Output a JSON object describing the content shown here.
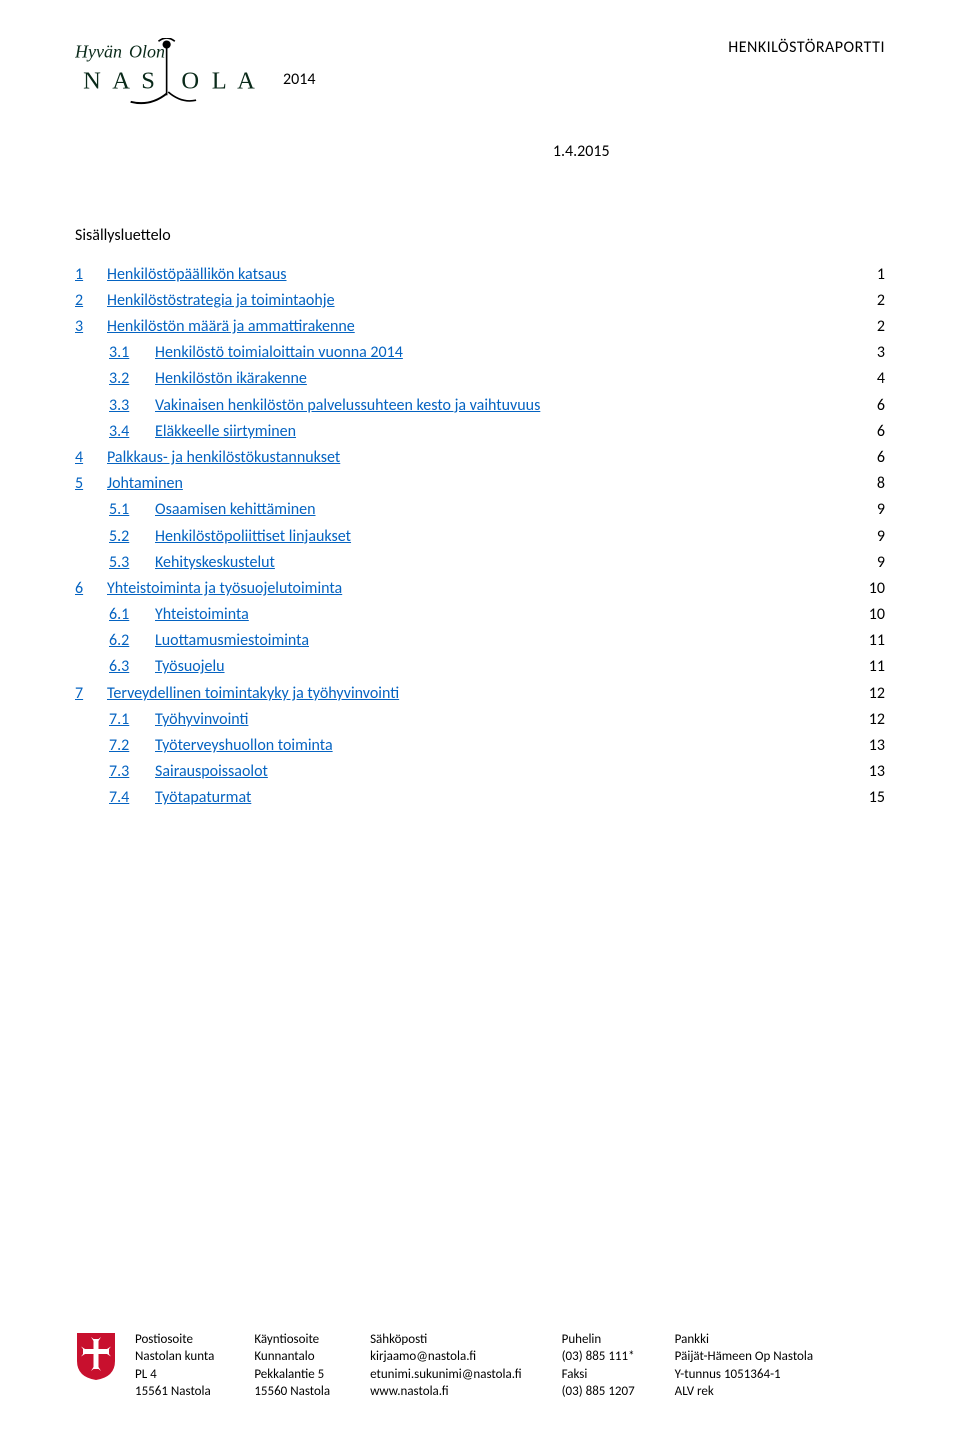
{
  "header": {
    "year": "2014",
    "report_title": "HENKILÖSTÖRAPORTTI",
    "date": "1.4.2015",
    "section_title": "Sisällysluettelo",
    "logo_alt": "Hyvän Olon Nastola"
  },
  "toc": [
    {
      "num": "1",
      "text": "Henkilöstöpäällikön katsaus",
      "page": "1",
      "level": 0
    },
    {
      "num": "2",
      "text": "Henkilöstöstrategia ja toimintaohje",
      "page": "2",
      "level": 0
    },
    {
      "num": "3",
      "text": "Henkilöstön määrä ja ammattirakenne",
      "page": "2",
      "level": 0
    },
    {
      "num": "3.1",
      "text": "Henkilöstö toimialoittain vuonna 2014",
      "page": "3",
      "level": 1
    },
    {
      "num": "3.2",
      "text": "Henkilöstön ikärakenne",
      "page": "4",
      "level": 1
    },
    {
      "num": "3.3",
      "text": "Vakinaisen henkilöstön palvelussuhteen kesto ja vaihtuvuus",
      "page": "6",
      "level": 1
    },
    {
      "num": "3.4",
      "text": "Eläkkeelle siirtyminen",
      "page": "6",
      "level": 1
    },
    {
      "num": "4",
      "text": "Palkkaus- ja henkilöstökustannukset",
      "page": "6",
      "level": 0
    },
    {
      "num": "5",
      "text": "Johtaminen",
      "page": "8",
      "level": 0
    },
    {
      "num": "5.1",
      "text": "Osaamisen kehittäminen",
      "page": "9",
      "level": 1
    },
    {
      "num": "5.2",
      "text": "Henkilöstöpoliittiset linjaukset",
      "page": "9",
      "level": 1
    },
    {
      "num": "5.3",
      "text": "Kehityskeskustelut",
      "page": "9",
      "level": 1
    },
    {
      "num": "6",
      "text": "Yhteistoiminta ja työsuojelutoiminta",
      "page": "10",
      "level": 0
    },
    {
      "num": "6.1",
      "text": "Yhteistoiminta",
      "page": "10",
      "level": 1
    },
    {
      "num": "6.2",
      "text": "Luottamusmiestoiminta",
      "page": "11",
      "level": 1
    },
    {
      "num": "6.3",
      "text": "Työsuojelu",
      "page": "11",
      "level": 1
    },
    {
      "num": "7",
      "text": "Terveydellinen toimintakyky ja työhyvinvointi",
      "page": "12",
      "level": 0
    },
    {
      "num": "7.1",
      "text": "Työhyvinvointi",
      "page": "12",
      "level": 1
    },
    {
      "num": "7.2",
      "text": "Työterveyshuollon toiminta",
      "page": "13",
      "level": 1
    },
    {
      "num": "7.3",
      "text": "Sairauspoissaolot",
      "page": "13",
      "level": 1
    },
    {
      "num": "7.4",
      "text": "Työtapaturmat",
      "page": "15",
      "level": 1
    }
  ],
  "footer": {
    "cols": [
      {
        "head": "Postiosoite",
        "lines": [
          "Nastolan kunta",
          "PL 4",
          "15561 Nastola"
        ]
      },
      {
        "head": "Käyntiosoite",
        "lines": [
          "Kunnantalo",
          "Pekkalantie 5",
          "15560 Nastola"
        ]
      },
      {
        "head": "Sähköposti",
        "lines": [
          "kirjaamo@nastola.fi",
          "etunimi.sukunimi@nastola.fi",
          "www.nastola.fi"
        ]
      },
      {
        "head": "Puhelin",
        "lines": [
          "(03) 885 111*",
          "Faksi",
          "(03) 885 1207"
        ]
      },
      {
        "head": "Pankki",
        "lines": [
          "Päijät-Hämeen Op Nastola",
          "Y-tunnus 1051364-1",
          "ALV rek"
        ]
      }
    ]
  },
  "colors": {
    "link": "#0563c1",
    "text": "#000000",
    "bg": "#ffffff",
    "crest": "#c8102e"
  }
}
